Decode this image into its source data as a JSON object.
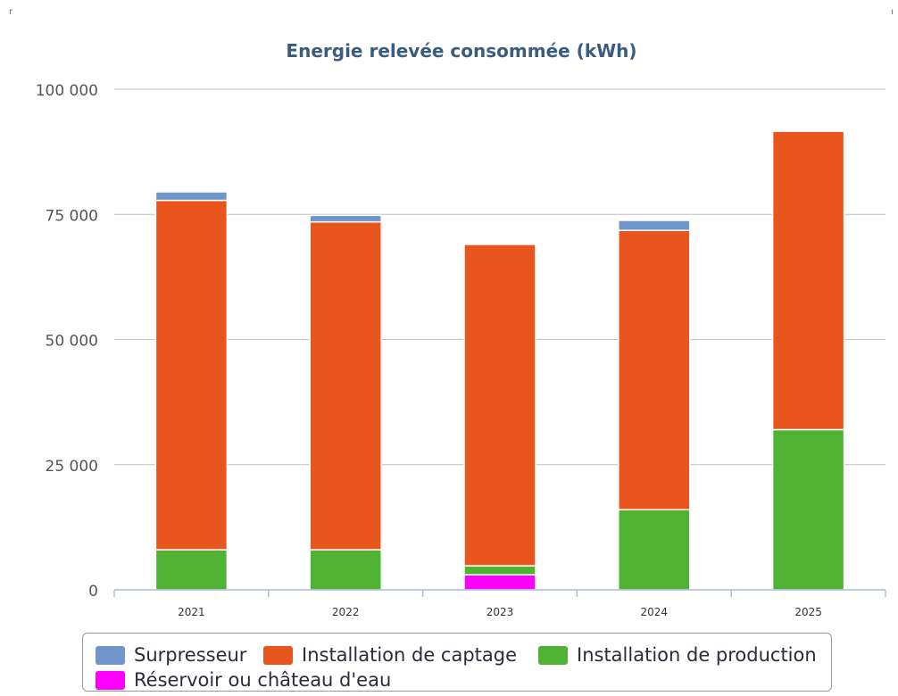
{
  "chart_data": {
    "type": "bar",
    "stacked": true,
    "title": "Energie relevée consommée (kWh)",
    "xlabel": "",
    "ylabel": "",
    "categories": [
      "2021",
      "2022",
      "2023",
      "2024",
      "2025"
    ],
    "ylim": [
      0,
      100000
    ],
    "yticks": [
      0,
      25000,
      50000,
      75000,
      100000
    ],
    "ytick_labels": [
      "0",
      "25 000",
      "50 000",
      "75 000",
      "100 000"
    ],
    "grid": true,
    "legend_position": "bottom",
    "series": [
      {
        "name": "Réservoir ou château d'eau",
        "color": "#ff00ff",
        "values": [
          0,
          0,
          3000,
          0,
          0
        ]
      },
      {
        "name": "Installation de production",
        "color": "#4fb233",
        "values": [
          8000,
          8000,
          1800,
          16000,
          32000
        ]
      },
      {
        "name": "Installation de captage",
        "color": "#e8561e",
        "values": [
          69800,
          65500,
          64200,
          55800,
          59600
        ]
      },
      {
        "name": "Surpresseur",
        "color": "#7196cb",
        "values": [
          1700,
          1300,
          0,
          2000,
          0
        ]
      }
    ],
    "legend_order": [
      "Surpresseur",
      "Installation de captage",
      "Installation de production",
      "Réservoir ou château d'eau"
    ]
  },
  "corner_marks": {
    "left": "r",
    "right": "ı"
  }
}
